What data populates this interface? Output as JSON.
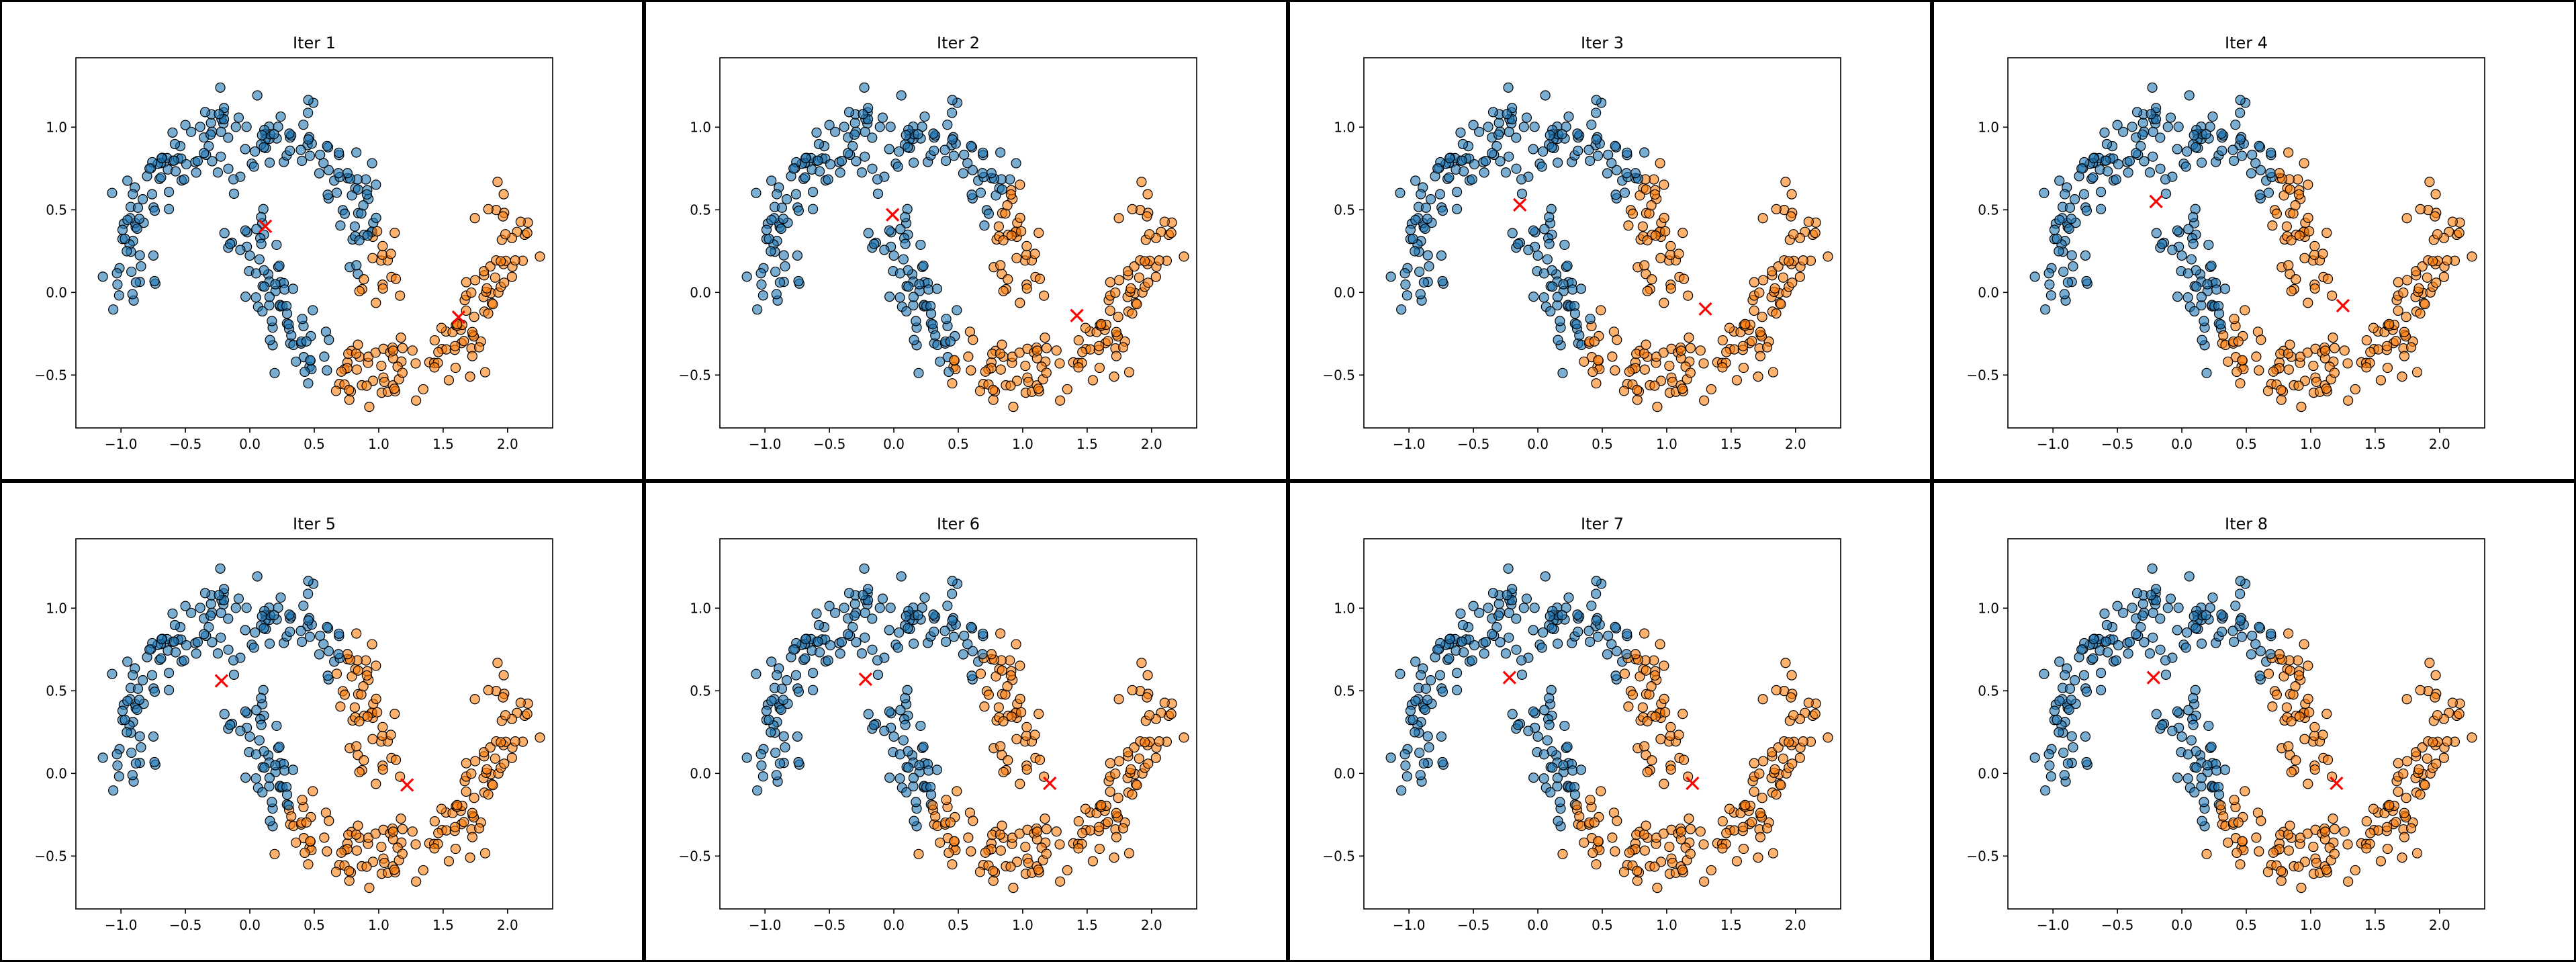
{
  "chart_data": {
    "type": "scatter",
    "description_rows": 2,
    "description_cols": 4,
    "xlim": [
      -1.35,
      2.35
    ],
    "ylim": [
      -0.82,
      1.42
    ],
    "xticks": [
      -1.0,
      -0.5,
      0.0,
      0.5,
      1.0,
      1.5,
      2.0
    ],
    "yticks": [
      -0.5,
      0.0,
      0.5,
      1.0
    ],
    "xtick_labels": [
      "−1.0",
      "−0.5",
      "0.0",
      "0.5",
      "1.0",
      "1.5",
      "2.0"
    ],
    "ytick_labels": [
      "−0.5",
      "0.0",
      "0.5",
      "1.0"
    ],
    "grid": false,
    "cluster_colors": [
      "#1f77b4",
      "#ff7f0e"
    ],
    "centroid_color": "#ff0000",
    "centroid_marker": "x",
    "points_per_moon": 200,
    "noise": 0.1,
    "panels": [
      {
        "title": "Iter 1",
        "centroids": [
          [
            0.12,
            0.4
          ],
          [
            1.62,
            -0.15
          ]
        ]
      },
      {
        "title": "Iter 2",
        "centroids": [
          [
            -0.01,
            0.47
          ],
          [
            1.42,
            -0.14
          ]
        ]
      },
      {
        "title": "Iter 3",
        "centroids": [
          [
            -0.14,
            0.53
          ],
          [
            1.3,
            -0.1
          ]
        ]
      },
      {
        "title": "Iter 4",
        "centroids": [
          [
            -0.2,
            0.55
          ],
          [
            1.25,
            -0.08
          ]
        ]
      },
      {
        "title": "Iter 5",
        "centroids": [
          [
            -0.22,
            0.56
          ],
          [
            1.22,
            -0.07
          ]
        ]
      },
      {
        "title": "Iter 6",
        "centroids": [
          [
            -0.22,
            0.57
          ],
          [
            1.21,
            -0.06
          ]
        ]
      },
      {
        "title": "Iter 7",
        "centroids": [
          [
            -0.22,
            0.58
          ],
          [
            1.2,
            -0.06
          ]
        ]
      },
      {
        "title": "Iter 8",
        "centroids": [
          [
            -0.22,
            0.58
          ],
          [
            1.2,
            -0.06
          ]
        ]
      }
    ]
  }
}
